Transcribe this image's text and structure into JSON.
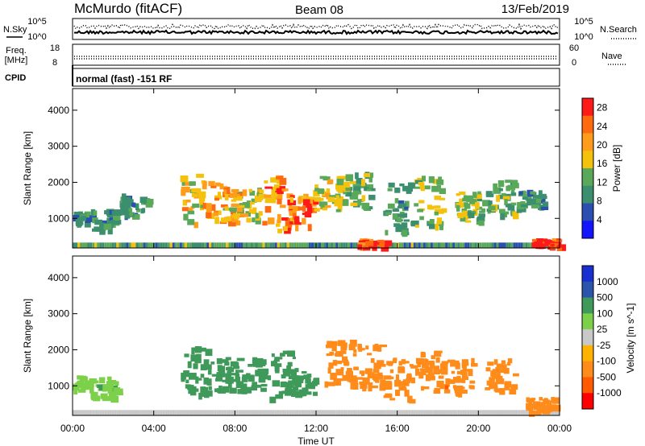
{
  "header": {
    "station": "McMurdo (fitACF)",
    "beam": "Beam 08",
    "date": "13/Feb/2019"
  },
  "top_panels": {
    "nsky_label": "N.Sky",
    "nsearch_label": "N.Search",
    "noise_ticks_left": [
      "10^5",
      "10^0"
    ],
    "noise_ticks_right": [
      "10^5",
      "10^0"
    ],
    "freq_label": "Freq.",
    "freq_unit": "[MHz]",
    "freq_ticks": [
      "18",
      "8"
    ],
    "nave_label": "Nave",
    "nave_ticks": [
      "60",
      "0"
    ],
    "cpid_label": "CPID",
    "cpid_text": "normal (fast) -151 RF"
  },
  "colors": {
    "scale": [
      "#0000ff",
      "#2050a8",
      "#5b9ad6",
      "#2e8b57",
      "#4aa064",
      "#9acd32",
      "#ffd24a",
      "#ffa500",
      "#ff7a1a",
      "#ff4500",
      "#ff0000"
    ],
    "power": [
      "#1414ff",
      "#2a4fb0",
      "#3b8f6e",
      "#5aa85a",
      "#f4c20d",
      "#ff9d1a",
      "#ff6a10",
      "#ff1a1a"
    ],
    "velocity": [
      "#ff0000",
      "#ff5a00",
      "#ff8c1a",
      "#ffb300",
      "#c8c8c8",
      "#7cd04a",
      "#3f9a5a",
      "#2a55aa",
      "#1a2fd0"
    ]
  },
  "chart_data": [
    {
      "type": "heatmap",
      "name": "Power",
      "ylabel": "Slant Range [km]",
      "xlabel": "Time UT",
      "x_ticks": [
        "00:00",
        "04:00",
        "08:00",
        "12:00",
        "16:00",
        "20:00",
        "00:00"
      ],
      "y_ticks": [
        1000,
        2000,
        3000,
        4000
      ],
      "ylim": [
        180,
        4600
      ],
      "colorbar": {
        "label": "Power [dB]",
        "ticks": [
          4,
          8,
          12,
          16,
          20,
          24,
          28
        ],
        "range": [
          0,
          30
        ]
      },
      "regions": [
        {
          "t": 0.2,
          "r0": 900,
          "r1": 1200,
          "v": 9
        },
        {
          "t": 1.5,
          "r0": 700,
          "r1": 1300,
          "v": 10
        },
        {
          "t": 3.0,
          "r0": 1100,
          "r1": 1700,
          "v": 10
        },
        {
          "t": 6.0,
          "r0": 900,
          "r1": 2300,
          "v": 18
        },
        {
          "t": 7.5,
          "r0": 900,
          "r1": 2000,
          "v": 20
        },
        {
          "t": 8.5,
          "r0": 1000,
          "r1": 1900,
          "v": 16
        },
        {
          "t": 10.0,
          "r0": 700,
          "r1": 2200,
          "v": 22
        },
        {
          "t": 11.2,
          "r0": 800,
          "r1": 1800,
          "v": 24
        },
        {
          "t": 12.5,
          "r0": 1200,
          "r1": 2200,
          "v": 16
        },
        {
          "t": 14.0,
          "r0": 1300,
          "r1": 2300,
          "v": 12
        },
        {
          "t": 16.0,
          "r0": 600,
          "r1": 2000,
          "v": 10
        },
        {
          "t": 17.5,
          "r0": 800,
          "r1": 2200,
          "v": 14
        },
        {
          "t": 19.5,
          "r0": 900,
          "r1": 1800,
          "v": 14
        },
        {
          "t": 21.0,
          "r0": 1100,
          "r1": 2100,
          "v": 12
        },
        {
          "t": 22.5,
          "r0": 1300,
          "r1": 1800,
          "v": 10
        },
        {
          "t": 14.7,
          "r0": 250,
          "r1": 450,
          "v": 28
        },
        {
          "t": 23.3,
          "r0": 250,
          "r1": 450,
          "v": 30
        }
      ]
    },
    {
      "type": "heatmap",
      "name": "Velocity",
      "ylabel": "Slant Range [km]",
      "xlabel": "Time UT",
      "x_ticks": [
        "00:00",
        "04:00",
        "08:00",
        "12:00",
        "16:00",
        "20:00",
        "00:00"
      ],
      "y_ticks": [
        1000,
        2000,
        3000,
        4000
      ],
      "ylim": [
        180,
        4600
      ],
      "colorbar": {
        "label": "Velocity [m s^-1]",
        "ticks": [
          "1000",
          "500",
          "100",
          "25",
          "-25",
          "-100",
          "-500",
          "-1000"
        ]
      },
      "regions": [
        {
          "t": 0.2,
          "r0": 900,
          "r1": 1300,
          "v": 50
        },
        {
          "t": 1.5,
          "r0": 700,
          "r1": 1300,
          "v": 80
        },
        {
          "t": 6.0,
          "r0": 800,
          "r1": 2200,
          "v": 300
        },
        {
          "t": 7.5,
          "r0": 900,
          "r1": 1800,
          "v": 300
        },
        {
          "t": 8.7,
          "r0": 900,
          "r1": 1800,
          "v": 250
        },
        {
          "t": 10.3,
          "r0": 700,
          "r1": 2000,
          "v": 200
        },
        {
          "t": 11.2,
          "r0": 800,
          "r1": 1500,
          "v": 150
        },
        {
          "t": 13.0,
          "r0": 1000,
          "r1": 2300,
          "v": -300
        },
        {
          "t": 14.5,
          "r0": 1000,
          "r1": 2200,
          "v": -200
        },
        {
          "t": 16.0,
          "r0": 600,
          "r1": 1800,
          "v": -150
        },
        {
          "t": 17.5,
          "r0": 800,
          "r1": 2000,
          "v": -400
        },
        {
          "t": 19.0,
          "r0": 800,
          "r1": 1800,
          "v": -400
        },
        {
          "t": 21.0,
          "r0": 900,
          "r1": 1800,
          "v": -300
        },
        {
          "t": 23.0,
          "r0": 300,
          "r1": 700,
          "v": -200
        }
      ]
    }
  ]
}
